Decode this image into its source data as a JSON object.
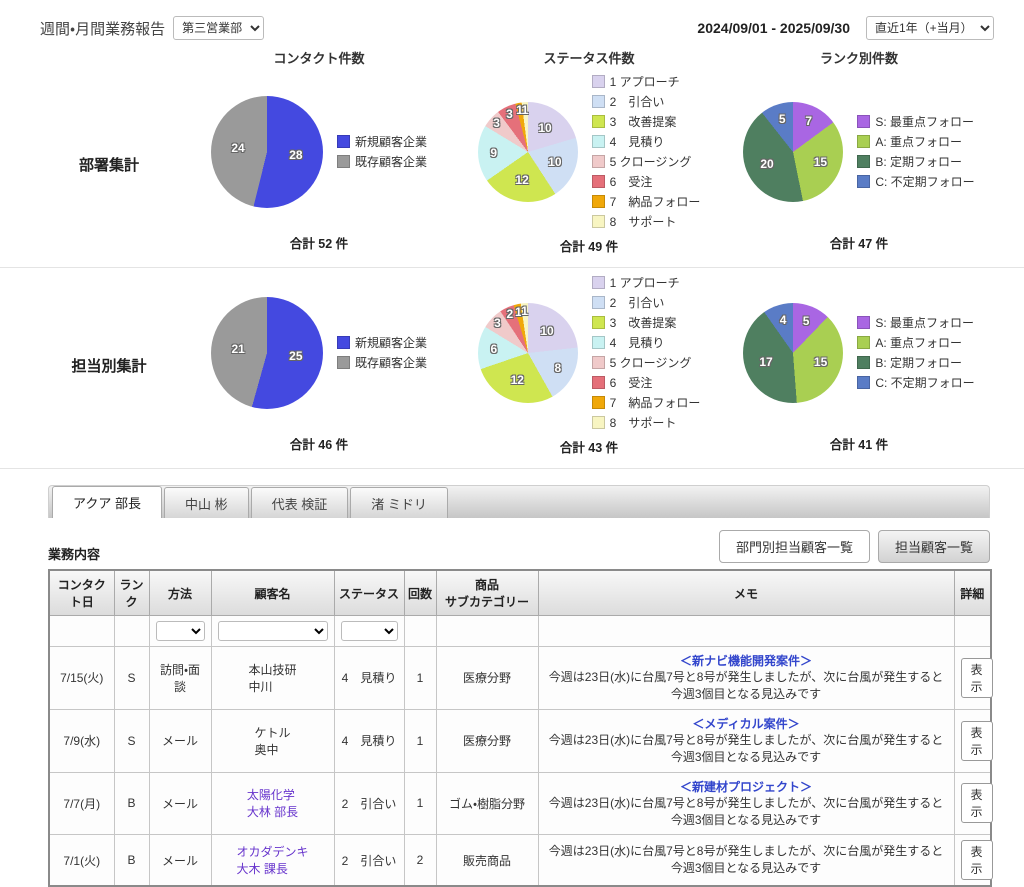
{
  "header": {
    "title": "週間・月間業務報告",
    "department_select": "第三営業部",
    "date_range": "2024/09/01 - 2025/09/30",
    "period_select": "直近1年（+当月）"
  },
  "chart_columns": [
    "コンタクト件数",
    "ステータス件数",
    "ランク別件数"
  ],
  "row_labels": [
    "部署集計",
    "担当別集計"
  ],
  "chart_data": [
    {
      "type": "pie",
      "row": "部署集計",
      "title": "コンタクト件数",
      "labels": [
        "新規顧客企業",
        "既存顧客企業"
      ],
      "values": [
        28,
        24
      ],
      "colors": [
        "#4449e0",
        "#9a9a9a"
      ],
      "total_label": "合計 52 件",
      "legend_position": "right",
      "size": "lg"
    },
    {
      "type": "pie",
      "row": "部署集計",
      "title": "ステータス件数",
      "labels": [
        "1 アプローチ",
        "2　引合い",
        "3　改善提案",
        "4　見積り",
        "5 クロージング",
        "6　受注",
        "7　納品フォロー",
        "8　サポート"
      ],
      "values": [
        10,
        10,
        12,
        9,
        3,
        3,
        1,
        1
      ],
      "colors": [
        "#d9d2ee",
        "#cfdff4",
        "#cfe650",
        "#c9f2f2",
        "#f0caca",
        "#e5707a",
        "#f0a80a",
        "#f8f5c2"
      ],
      "total_label": "合計 49 件",
      "legend_position": "right",
      "size": "md"
    },
    {
      "type": "pie",
      "row": "部署集計",
      "title": "ランク別件数",
      "labels": [
        "S: 最重点フォロー",
        "A: 重点フォロー",
        "B: 定期フォロー",
        "C: 不定期フォロー"
      ],
      "values": [
        7,
        15,
        20,
        5
      ],
      "colors": [
        "#a966e3",
        "#a9cf52",
        "#4f7f60",
        "#5a7cc6"
      ],
      "total_label": "合計 47 件",
      "legend_position": "right",
      "size": "md"
    },
    {
      "type": "pie",
      "row": "担当別集計",
      "title": "コンタクト件数",
      "labels": [
        "新規顧客企業",
        "既存顧客企業"
      ],
      "values": [
        25,
        21
      ],
      "colors": [
        "#4449e0",
        "#9a9a9a"
      ],
      "total_label": "合計 46 件",
      "legend_position": "right",
      "size": "lg"
    },
    {
      "type": "pie",
      "row": "担当別集計",
      "title": "ステータス件数",
      "labels": [
        "1 アプローチ",
        "2　引合い",
        "3　改善提案",
        "4　見積り",
        "5 クロージング",
        "6　受注",
        "7　納品フォロー",
        "8　サポート"
      ],
      "values": [
        10,
        8,
        12,
        6,
        3,
        2,
        1,
        1
      ],
      "colors": [
        "#d9d2ee",
        "#cfdff4",
        "#cfe650",
        "#c9f2f2",
        "#f0caca",
        "#e5707a",
        "#f0a80a",
        "#f8f5c2"
      ],
      "total_label": "合計 43 件",
      "legend_position": "right",
      "size": "md"
    },
    {
      "type": "pie",
      "row": "担当別集計",
      "title": "ランク別件数",
      "labels": [
        "S: 最重点フォロー",
        "A: 重点フォロー",
        "B: 定期フォロー",
        "C: 不定期フォロー"
      ],
      "values": [
        5,
        15,
        17,
        4
      ],
      "colors": [
        "#a966e3",
        "#a9cf52",
        "#4f7f60",
        "#5a7cc6"
      ],
      "total_label": "合計 41 件",
      "legend_position": "right",
      "size": "md"
    }
  ],
  "tabs": [
    {
      "label": "アクア 部長",
      "active": true
    },
    {
      "label": "中山 彬",
      "active": false
    },
    {
      "label": "代表 検証",
      "active": false
    },
    {
      "label": "渚 ミドリ",
      "active": false
    }
  ],
  "toolbar": {
    "section_label": "業務内容",
    "dept_customers_button": "部門別担当顧客一覧",
    "my_customers_button": "担当顧客一覧"
  },
  "table": {
    "headers": [
      "コンタクト日",
      "ランク",
      "方法",
      "顧客名",
      "ステータス",
      "回数",
      "商品\nサブカテゴリー",
      "メモ",
      "詳細"
    ],
    "show_button_label": "表示",
    "rows": [
      {
        "date": "7/15(火)",
        "rank": "S",
        "method": "訪問・面談",
        "customer": "本山技研\n中川",
        "customer_is_link": false,
        "status": "4　見積り",
        "count": "1",
        "category": "医療分野",
        "memo_title": "＜新ナビ機能開発案件＞",
        "memo_body": "今週は23日(水)に台風7号と8号が発生しましたが、次に台風が発生すると今週3個目となる見込みです"
      },
      {
        "date": "7/9(水)",
        "rank": "S",
        "method": "メール",
        "customer": "ケトル\n奥中",
        "customer_is_link": false,
        "status": "4　見積り",
        "count": "1",
        "category": "医療分野",
        "memo_title": "＜メディカル案件＞",
        "memo_body": "今週は23日(水)に台風7号と8号が発生しましたが、次に台風が発生すると今週3個目となる見込みです"
      },
      {
        "date": "7/7(月)",
        "rank": "B",
        "method": "メール",
        "customer": "太陽化学\n大林 部長",
        "customer_is_link": true,
        "status": "2　引合い",
        "count": "1",
        "category": "ゴム・樹脂分野",
        "memo_title": "＜新建材プロジェクト＞",
        "memo_body": "今週は23日(水)に台風7号と8号が発生しましたが、次に台風が発生すると今週3個目となる見込みです"
      },
      {
        "date": "7/1(火)",
        "rank": "B",
        "method": "メール",
        "customer": "オカダデンキ\n大木 課長",
        "customer_is_link": true,
        "status": "2　引合い",
        "count": "2",
        "category": "販売商品",
        "memo_title": "",
        "memo_body": "今週は23日(水)に台風7号と8号が発生しましたが、次に台風が発生すると今週3個目となる見込みです"
      }
    ]
  }
}
